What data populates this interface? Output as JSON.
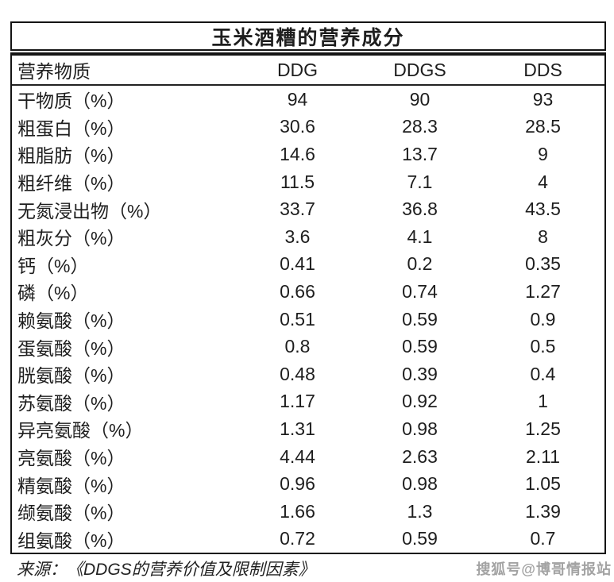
{
  "chart_data": {
    "type": "table",
    "title": "玉米酒糟的营养成分",
    "columns": [
      "营养物质",
      "DDG",
      "DDGS",
      "DDS"
    ],
    "rows": [
      {
        "cells": [
          "干物质（%）",
          "94",
          "90",
          "93"
        ],
        "highlight": false
      },
      {
        "cells": [
          "粗蛋白（%）",
          "30.6",
          "28.3",
          "28.5"
        ],
        "highlight": false
      },
      {
        "cells": [
          "粗脂肪（%）",
          "14.6",
          "13.7",
          "9"
        ],
        "highlight": false
      },
      {
        "cells": [
          "粗纤维（%）",
          "11.5",
          "7.1",
          "4"
        ],
        "highlight": false
      },
      {
        "cells": [
          "无氮浸出物（%）",
          "33.7",
          "36.8",
          "43.5"
        ],
        "highlight": false
      },
      {
        "cells": [
          "粗灰分（%）",
          "3.6",
          "4.1",
          "8"
        ],
        "highlight": false
      },
      {
        "cells": [
          "钙（%）",
          "0.41",
          "0.2",
          "0.35"
        ],
        "highlight": false
      },
      {
        "cells": [
          "磷（%）",
          "0.66",
          "0.74",
          "1.27"
        ],
        "highlight": false
      },
      {
        "cells": [
          "赖氨酸（%）",
          "0.51",
          "0.59",
          "0.9"
        ],
        "highlight": true
      },
      {
        "cells": [
          "蛋氨酸（%）",
          "0.8",
          "0.59",
          "0.5"
        ],
        "highlight": false
      },
      {
        "cells": [
          "胱氨酸（%）",
          "0.48",
          "0.39",
          "0.4"
        ],
        "highlight": false
      },
      {
        "cells": [
          "苏氨酸（%）",
          "1.17",
          "0.92",
          "1"
        ],
        "highlight": false
      },
      {
        "cells": [
          "异亮氨酸（%）",
          "1.31",
          "0.98",
          "1.25"
        ],
        "highlight": false
      },
      {
        "cells": [
          "亮氨酸（%）",
          "4.44",
          "2.63",
          "2.11"
        ],
        "highlight": false
      },
      {
        "cells": [
          "精氨酸（%）",
          "0.96",
          "0.98",
          "1.05"
        ],
        "highlight": false
      },
      {
        "cells": [
          "缬氨酸（%）",
          "1.66",
          "1.3",
          "1.39"
        ],
        "highlight": false
      },
      {
        "cells": [
          "组氨酸（%）",
          "0.72",
          "0.59",
          "0.7"
        ],
        "highlight": false
      }
    ]
  },
  "source": "来源：《DDGS的营养价值及限制因素》",
  "watermark": "搜狐号@博哥情报站",
  "colors": {
    "highlight": "#fbe2d3",
    "text": "#1e1e1e",
    "border": "#141414",
    "watermark": "#a3a3a3"
  }
}
